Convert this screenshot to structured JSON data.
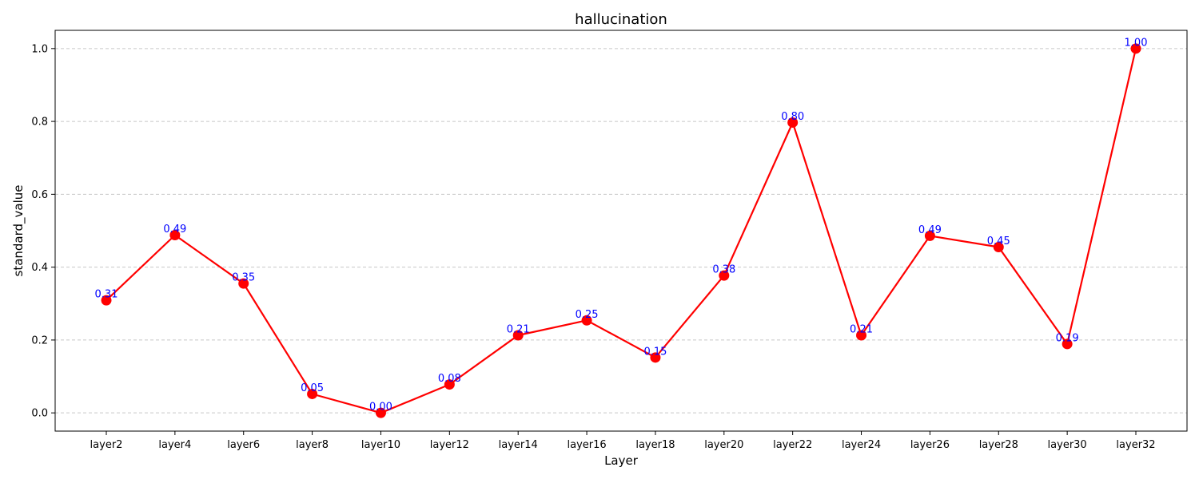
{
  "chart_data": {
    "type": "line",
    "title": "hallucination",
    "xlabel": "Layer",
    "ylabel": "standard_value",
    "categories": [
      "layer2",
      "layer4",
      "layer6",
      "layer8",
      "layer10",
      "layer12",
      "layer14",
      "layer16",
      "layer18",
      "layer20",
      "layer22",
      "layer24",
      "layer26",
      "layer28",
      "layer30",
      "layer32"
    ],
    "series": [
      {
        "values": [
          0.309,
          0.488,
          0.355,
          0.052,
          0.0,
          0.078,
          0.213,
          0.254,
          0.152,
          0.377,
          0.797,
          0.213,
          0.486,
          0.455,
          0.189,
          1.0
        ]
      }
    ],
    "data_labels": [
      "0.31",
      "0.49",
      "0.35",
      "0.05",
      "0.00",
      "0.08",
      "0.21",
      "0.25",
      "0.15",
      "0.38",
      "0.80",
      "0.21",
      "0.49",
      "0.45",
      "0.19",
      "1.00"
    ],
    "yticks": [
      "0.0",
      "0.2",
      "0.4",
      "0.6",
      "0.8",
      "1.0"
    ],
    "ylim": [
      -0.05,
      1.05
    ],
    "grid": "horizontal dashed",
    "colors": {
      "line": "#ff0000",
      "marker": "#ff0000",
      "label": "#0000ff",
      "grid": "#c8c8c8"
    }
  }
}
